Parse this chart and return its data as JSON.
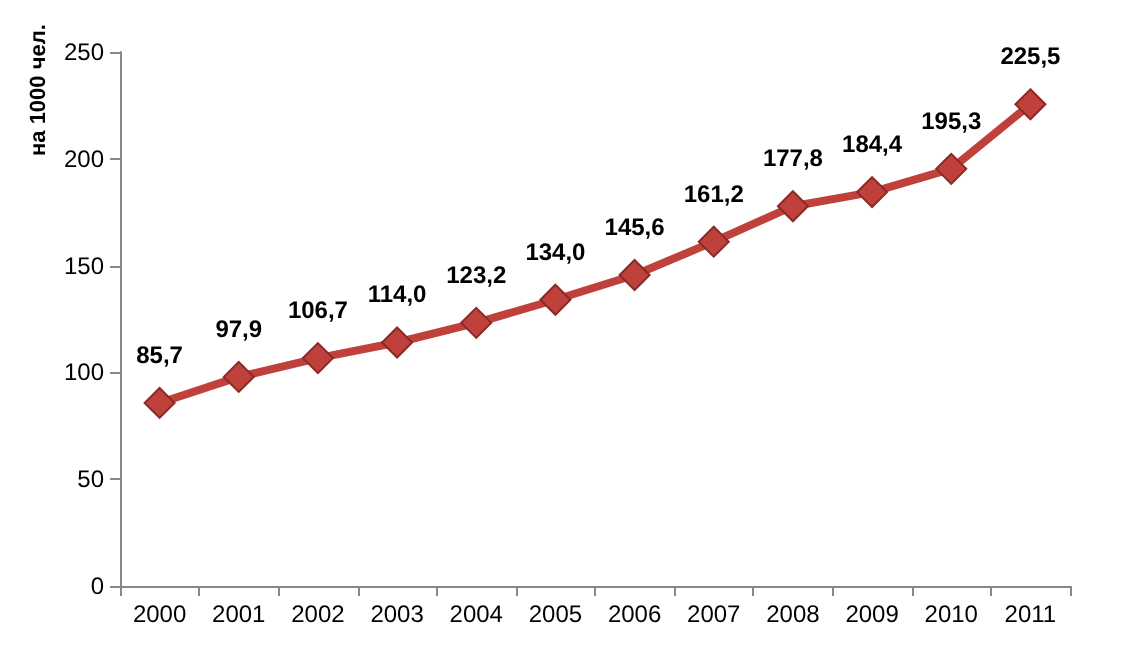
{
  "chart_data": {
    "type": "line",
    "ylabel": "на 1000 чел.",
    "categories": [
      "2000",
      "2001",
      "2002",
      "2003",
      "2004",
      "2005",
      "2006",
      "2007",
      "2008",
      "2009",
      "2010",
      "2011"
    ],
    "series": [
      {
        "color": "#c0403c",
        "values": [
          85.7,
          97.9,
          106.7,
          114.0,
          123.2,
          134.0,
          145.6,
          161.2,
          177.8,
          184.4,
          195.3,
          225.5
        ],
        "value_labels": [
          "85,7",
          "97,9",
          "106,7",
          "114,0",
          "123,2",
          "134,0",
          "145,6",
          "161,2",
          "177,8",
          "184,4",
          "195,3",
          "225,5"
        ]
      }
    ],
    "ylim": [
      0,
      250
    ],
    "yticks": [
      0,
      50,
      100,
      150,
      200,
      250
    ],
    "grid": false,
    "marker": "diamond",
    "line_style": "solid"
  }
}
